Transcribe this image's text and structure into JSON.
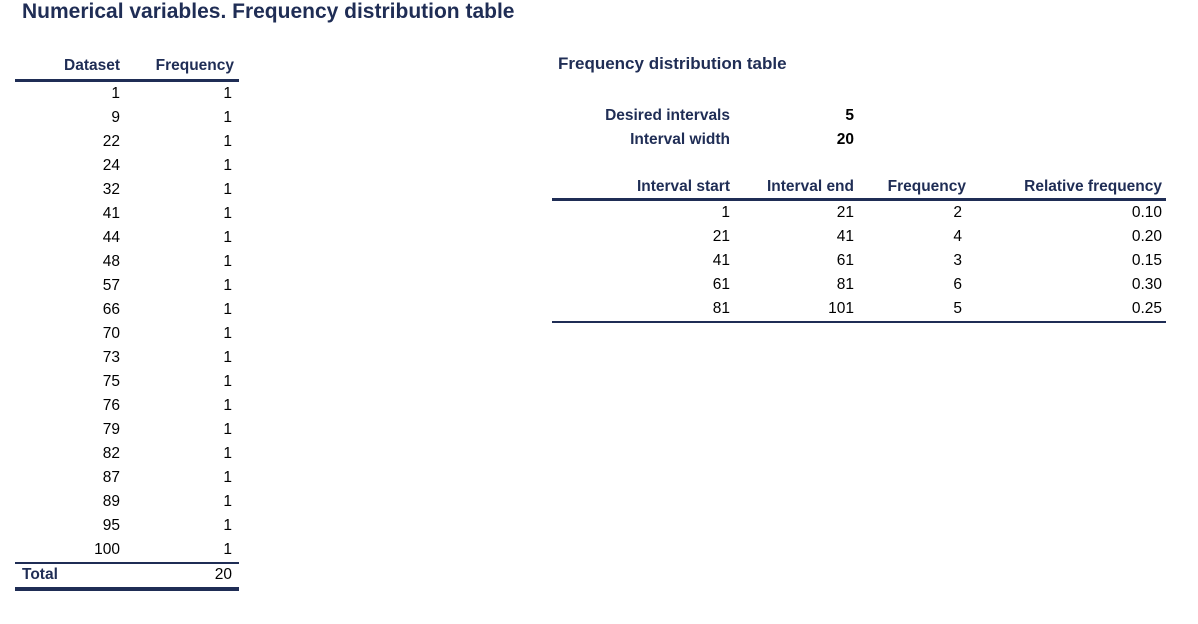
{
  "page": {
    "title": "Numerical variables. Frequency distribution table"
  },
  "dataset_table": {
    "headers": {
      "dataset": "Dataset",
      "frequency": "Frequency"
    },
    "rows": [
      {
        "dataset": "1",
        "frequency": "1"
      },
      {
        "dataset": "9",
        "frequency": "1"
      },
      {
        "dataset": "22",
        "frequency": "1"
      },
      {
        "dataset": "24",
        "frequency": "1"
      },
      {
        "dataset": "32",
        "frequency": "1"
      },
      {
        "dataset": "41",
        "frequency": "1"
      },
      {
        "dataset": "44",
        "frequency": "1"
      },
      {
        "dataset": "48",
        "frequency": "1"
      },
      {
        "dataset": "57",
        "frequency": "1"
      },
      {
        "dataset": "66",
        "frequency": "1"
      },
      {
        "dataset": "70",
        "frequency": "1"
      },
      {
        "dataset": "73",
        "frequency": "1"
      },
      {
        "dataset": "75",
        "frequency": "1"
      },
      {
        "dataset": "76",
        "frequency": "1"
      },
      {
        "dataset": "79",
        "frequency": "1"
      },
      {
        "dataset": "82",
        "frequency": "1"
      },
      {
        "dataset": "87",
        "frequency": "1"
      },
      {
        "dataset": "89",
        "frequency": "1"
      },
      {
        "dataset": "95",
        "frequency": "1"
      },
      {
        "dataset": "100",
        "frequency": "1"
      }
    ],
    "total": {
      "label": "Total",
      "value": "20"
    }
  },
  "frequency_table": {
    "title": "Frequency distribution table",
    "desired_intervals": {
      "label": "Desired intervals",
      "value": "5"
    },
    "interval_width": {
      "label": "Interval width",
      "value": "20"
    },
    "headers": {
      "interval_start": "Interval start",
      "interval_end": "Interval end",
      "frequency": "Frequency",
      "relative_frequency": "Relative frequency"
    },
    "rows": [
      {
        "start": "1",
        "end": "21",
        "frequency": "2",
        "relative": "0.10"
      },
      {
        "start": "21",
        "end": "41",
        "frequency": "4",
        "relative": "0.20"
      },
      {
        "start": "41",
        "end": "61",
        "frequency": "3",
        "relative": "0.15"
      },
      {
        "start": "61",
        "end": "81",
        "frequency": "6",
        "relative": "0.30"
      },
      {
        "start": "81",
        "end": "101",
        "frequency": "5",
        "relative": "0.25"
      }
    ]
  },
  "colors": {
    "accent": "#1f2d55",
    "text": "#000000",
    "background": "#ffffff"
  }
}
